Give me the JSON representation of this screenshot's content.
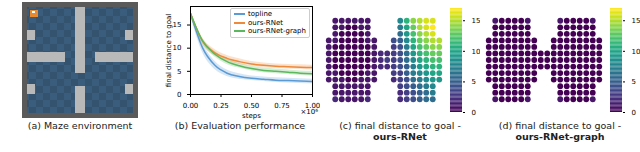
{
  "chart_data": [
    {
      "type": "maze",
      "title": "(a) Maze environment"
    },
    {
      "type": "line",
      "title": "(b) Evaluation performance",
      "xlabel": "steps",
      "x_offset_label": "×10⁶",
      "ylabel": "final distance to goal",
      "x": [
        0,
        0.1,
        0.2,
        0.3,
        0.4,
        0.5,
        0.6,
        0.7,
        0.8,
        0.9,
        1.0
      ],
      "xlim": [
        0,
        1
      ],
      "xticks": [
        {
          "value": 0,
          "label": "0.00"
        },
        {
          "value": 0.25,
          "label": "0.25"
        },
        {
          "value": 0.5,
          "label": "0.50"
        },
        {
          "value": 0.75,
          "label": "0.75"
        },
        {
          "value": 1,
          "label": "1.00"
        }
      ],
      "ylim": [
        0,
        19
      ],
      "yticks": [
        0,
        5,
        10,
        15
      ],
      "grid": false,
      "legend": "upper right",
      "series": [
        {
          "name": "topline",
          "color": "#5b9bd5",
          "values": [
            17.5,
            10,
            6.3,
            4.6,
            3.9,
            3.5,
            3.3,
            3.1,
            3.0,
            2.9,
            2.8
          ],
          "lower": [
            17.0,
            9.0,
            5.4,
            3.9,
            3.3,
            3.0,
            2.8,
            2.6,
            2.5,
            2.4,
            2.3
          ],
          "upper": [
            18.0,
            11.0,
            7.2,
            5.3,
            4.5,
            4.0,
            3.8,
            3.6,
            3.5,
            3.4,
            3.3
          ]
        },
        {
          "name": "ours-RNet",
          "color": "#ee8a3b",
          "values": [
            17.5,
            11.5,
            9,
            7.8,
            7.1,
            6.6,
            6.3,
            6.1,
            6.0,
            5.9,
            5.8
          ],
          "lower": [
            17.0,
            10.8,
            8.3,
            7.2,
            6.5,
            6.1,
            5.8,
            5.6,
            5.5,
            5.4,
            5.3
          ],
          "upper": [
            18.0,
            12.2,
            9.7,
            8.4,
            7.7,
            7.1,
            6.8,
            6.6,
            6.5,
            6.4,
            6.3
          ]
        },
        {
          "name": "ours-RNet-graph",
          "color": "#5cb85c",
          "values": [
            17.5,
            11.5,
            8.7,
            7.1,
            6.2,
            5.6,
            5.2,
            5.0,
            4.8,
            4.6,
            4.5
          ],
          "lower": [
            17.0,
            10.9,
            8.1,
            6.5,
            5.7,
            5.1,
            4.7,
            4.5,
            4.3,
            4.1,
            4.0
          ],
          "upper": [
            18.0,
            12.1,
            9.3,
            7.7,
            6.7,
            6.1,
            5.7,
            5.5,
            5.3,
            5.1,
            5.0
          ]
        }
      ]
    },
    {
      "type": "heatmap",
      "title": "(c) final distance to goal - ours-RNet",
      "color": "viridis",
      "tick_labels": false,
      "colorbar": {
        "range": [
          0,
          17
        ],
        "ticks": [
          0,
          5,
          10,
          15
        ]
      },
      "cells": [
        [
          null,
          1,
          1,
          1,
          1,
          1,
          1,
          null,
          null,
          null,
          null,
          8,
          11,
          14,
          15,
          16,
          16,
          null
        ],
        [
          null,
          1,
          1,
          0,
          0,
          1,
          1,
          null,
          null,
          null,
          null,
          7,
          10,
          13,
          15,
          16,
          17,
          null
        ],
        [
          null,
          1,
          0,
          0,
          0,
          0,
          1,
          null,
          null,
          null,
          null,
          6,
          9,
          12,
          14,
          15,
          16,
          null
        ],
        [
          1,
          1,
          0,
          0,
          0,
          0,
          1,
          1,
          null,
          null,
          4,
          5,
          8,
          11,
          13,
          14,
          15,
          15
        ],
        [
          1,
          0,
          0,
          0,
          0,
          0,
          0,
          1,
          null,
          null,
          3,
          4,
          7,
          10,
          12,
          13,
          14,
          14
        ],
        [
          1,
          0,
          0,
          0,
          0,
          0,
          0,
          1,
          2,
          2,
          3,
          4,
          6,
          9,
          11,
          12,
          13,
          13
        ],
        [
          1,
          0,
          0,
          0,
          0,
          0,
          0,
          1,
          2,
          3,
          3,
          4,
          6,
          8,
          10,
          11,
          12,
          12
        ],
        [
          1,
          0,
          0,
          0,
          0,
          0,
          0,
          1,
          2,
          2,
          3,
          4,
          5,
          7,
          9,
          10,
          11,
          11
        ],
        [
          1,
          1,
          0,
          0,
          0,
          0,
          1,
          1,
          null,
          null,
          3,
          3,
          5,
          7,
          8,
          9,
          10,
          10
        ],
        [
          1,
          1,
          1,
          0,
          0,
          1,
          1,
          1,
          null,
          null,
          2,
          3,
          4,
          6,
          7,
          8,
          9,
          9
        ],
        [
          null,
          1,
          1,
          1,
          1,
          1,
          1,
          null,
          null,
          null,
          null,
          3,
          4,
          5,
          6,
          7,
          8,
          null
        ],
        [
          null,
          1,
          1,
          1,
          1,
          1,
          1,
          null,
          null,
          null,
          null,
          2,
          3,
          4,
          5,
          6,
          7,
          null
        ],
        [
          null,
          2,
          1,
          1,
          1,
          1,
          2,
          null,
          null,
          null,
          null,
          2,
          3,
          4,
          5,
          6,
          6,
          null
        ]
      ]
    },
    {
      "type": "heatmap",
      "title": "(d) final distance to goal - ours-RNet-graph",
      "color": "viridis",
      "tick_labels": false,
      "colorbar": {
        "range": [
          0,
          17
        ],
        "ticks": [
          0,
          5,
          10,
          15
        ]
      },
      "cells": [
        [
          null,
          1,
          0,
          0,
          0,
          0,
          1,
          null,
          null,
          null,
          null,
          1,
          0,
          0,
          0,
          0,
          1,
          null
        ],
        [
          null,
          0,
          0,
          0,
          0,
          0,
          0,
          null,
          null,
          null,
          null,
          0,
          0,
          0,
          0,
          0,
          0,
          null
        ],
        [
          null,
          0,
          0,
          0,
          0,
          0,
          0,
          null,
          null,
          null,
          null,
          0,
          0,
          0,
          0,
          0,
          0,
          null
        ],
        [
          0,
          0,
          0,
          0,
          0,
          0,
          0,
          0,
          null,
          null,
          0,
          0,
          0,
          0,
          0,
          0,
          0,
          0
        ],
        [
          0,
          0,
          0,
          0,
          0,
          0,
          0,
          0,
          null,
          null,
          0,
          0,
          0,
          0,
          0,
          0,
          0,
          0
        ],
        [
          0,
          0,
          0,
          0,
          0,
          0,
          0,
          0,
          0,
          0,
          0,
          0,
          0,
          0,
          0,
          0,
          0,
          0
        ],
        [
          0,
          0,
          0,
          0,
          0,
          0,
          0,
          0,
          0,
          0,
          0,
          0,
          0,
          0,
          0,
          0,
          0,
          0
        ],
        [
          0,
          0,
          0,
          0,
          0,
          0,
          0,
          0,
          0,
          0,
          0,
          0,
          0,
          0,
          0,
          0,
          0,
          0
        ],
        [
          0,
          0,
          0,
          0,
          0,
          0,
          0,
          0,
          null,
          null,
          0,
          0,
          0,
          0,
          0,
          0,
          0,
          0
        ],
        [
          0,
          0,
          0,
          0,
          0,
          0,
          0,
          0,
          null,
          null,
          0,
          0,
          0,
          0,
          0,
          0,
          0,
          0
        ],
        [
          null,
          0,
          0,
          0,
          0,
          0,
          0,
          null,
          null,
          null,
          null,
          0,
          0,
          0,
          0,
          0,
          0,
          null
        ],
        [
          null,
          0,
          0,
          0,
          0,
          0,
          0,
          null,
          null,
          null,
          null,
          0,
          0,
          0,
          0,
          0,
          0,
          null
        ],
        [
          null,
          1,
          0,
          0,
          0,
          0,
          1,
          null,
          null,
          null,
          null,
          1,
          0,
          0,
          0,
          0,
          1,
          null
        ]
      ]
    }
  ]
}
